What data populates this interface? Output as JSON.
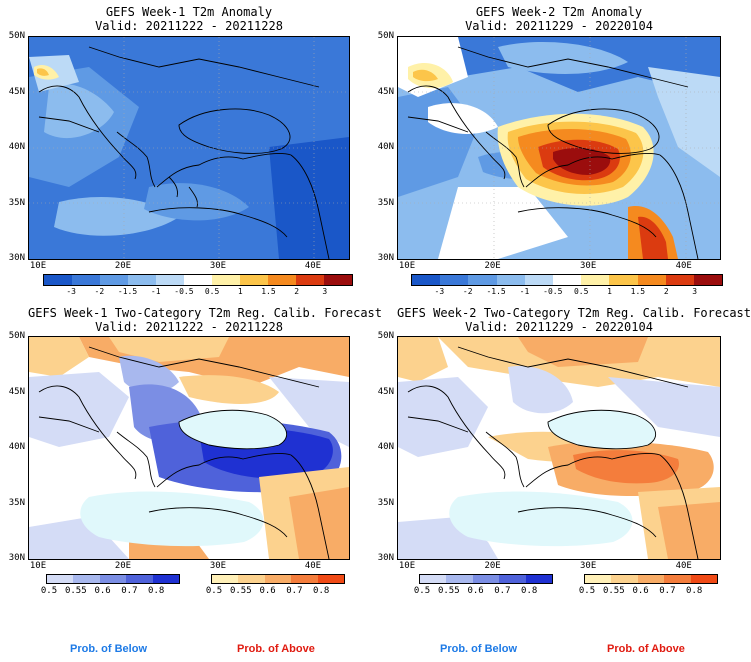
{
  "panels": {
    "tl": {
      "title": "GEFS Week-1 T2m Anomaly",
      "valid": "Valid: 20211222 - 20211228"
    },
    "tr": {
      "title": "GEFS Week-2 T2m Anomaly",
      "valid": "Valid: 20211229 - 20220104"
    },
    "bl": {
      "title": "GEFS Week-1 Two-Category T2m Reg. Calib. Forecast",
      "valid": "Valid: 20211222 - 20211228"
    },
    "br": {
      "title": "GEFS Week-2 Two-Category T2m Reg. Calib. Forecast",
      "valid": "Valid: 20211229 - 20220104"
    }
  },
  "axes": {
    "lat": [
      "50N",
      "45N",
      "40N",
      "35N",
      "30N"
    ],
    "lon": [
      "10E",
      "20E",
      "30E",
      "40E"
    ]
  },
  "anomaly_colorbar": {
    "labels": [
      "-3",
      "-2",
      "-1.5",
      "-1",
      "-0.5",
      "0.5",
      "1",
      "1.5",
      "2",
      "3"
    ],
    "colors": [
      "#1a57c8",
      "#3a78d8",
      "#5f9ae4",
      "#8cbcee",
      "#bcdaf6",
      "#ffffff",
      "#fff1a8",
      "#fcc54a",
      "#f58a1f",
      "#db3b10",
      "#9b0d0d"
    ]
  },
  "prob_below": {
    "labels": [
      "0.5",
      "0.55",
      "0.6",
      "0.7",
      "0.8"
    ],
    "colors": [
      "#d4dcf6",
      "#a8b8ee",
      "#7b8ee4",
      "#4f62da",
      "#1f31d2"
    ]
  },
  "prob_above": {
    "labels": [
      "0.5",
      "0.55",
      "0.6",
      "0.7",
      "0.8"
    ],
    "colors": [
      "#fff0b8",
      "#fcd28e",
      "#f8ac66",
      "#f47d3c",
      "#f04a16"
    ]
  },
  "footer": {
    "below_label": "Prob. of Below",
    "above_label": "Prob. of Above",
    "below_color": "#1d7ae6",
    "above_color": "#e01b10"
  }
}
